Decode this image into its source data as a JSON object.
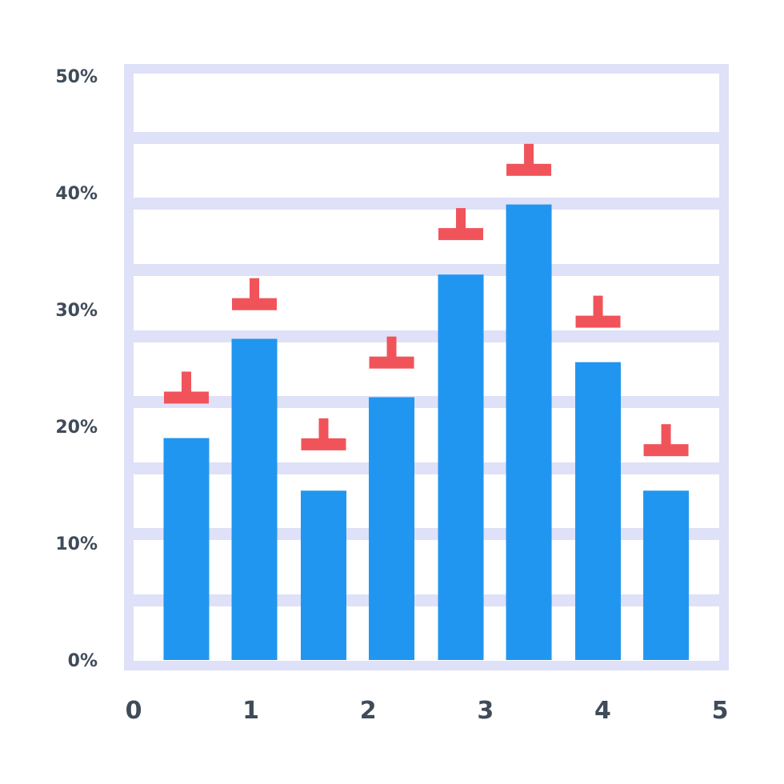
{
  "chart_data": {
    "type": "bar",
    "title": "",
    "xlabel": "",
    "ylabel": "",
    "x_ticks": [
      "0",
      "1",
      "2",
      "3",
      "4",
      "5"
    ],
    "x_range": [
      0,
      5
    ],
    "y_ticks": [
      "0%",
      "10%",
      "20%",
      "30%",
      "40%",
      "50%"
    ],
    "y_tick_values": [
      0,
      10,
      20,
      30,
      40,
      50
    ],
    "ylim": [
      0,
      50
    ],
    "grid": true,
    "legend": "none",
    "bar_centers": [
      0.45,
      1.03,
      1.62,
      2.2,
      2.79,
      3.37,
      3.96,
      4.54
    ],
    "values": [
      19,
      27.5,
      14.5,
      22.5,
      33,
      39,
      25.5,
      14.5
    ],
    "marker_values": [
      22.5,
      30.5,
      18.5,
      25.5,
      36.5,
      42,
      29,
      18
    ],
    "colors": {
      "bar": "#2196f0",
      "marker": "#f0545a",
      "grid": "#dfe1f8",
      "text": "#3f4b59"
    }
  }
}
